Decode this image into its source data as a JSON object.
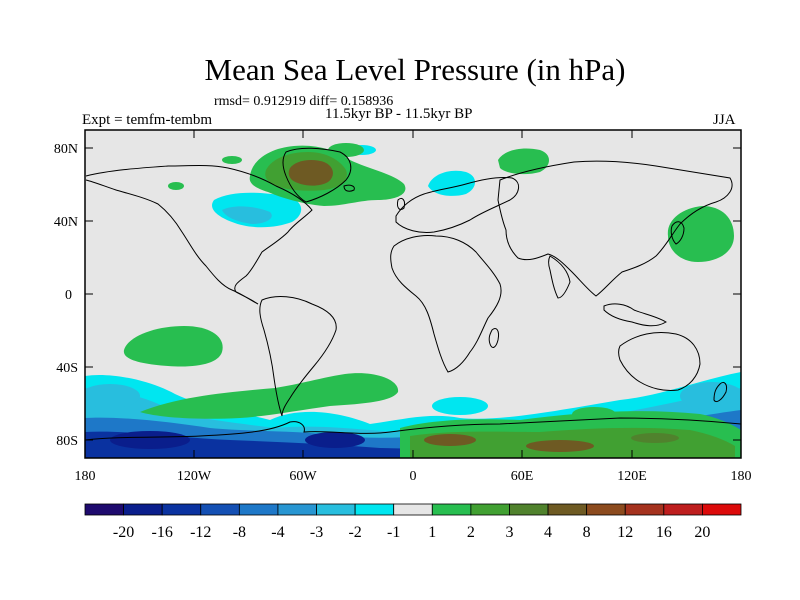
{
  "title": "Mean Sea Level Pressure (in hPa)",
  "stats": "rmsd= 0.912919 diff= 0.158936",
  "period": "11.5kyr BP - 11.5kyr BP",
  "experiment": "Expt = temfm-tembm",
  "season": "JJA",
  "axes": {
    "y_ticks": [
      "80N",
      "40N",
      "0",
      "40S",
      "80S"
    ],
    "x_ticks": [
      "180",
      "120W",
      "60W",
      "0",
      "60E",
      "120E",
      "180"
    ]
  },
  "colorbar": {
    "labels": [
      "-20",
      "-16",
      "-12",
      "-8",
      "-4",
      "-3",
      "-2",
      "-1",
      "1",
      "2",
      "3",
      "4",
      "8",
      "12",
      "16",
      "20"
    ],
    "colors": [
      "#1e0a6e",
      "#0a1e8c",
      "#0a32a0",
      "#1450b4",
      "#1e78c8",
      "#2896d2",
      "#28bede",
      "#00e6f0",
      "#e6e6e6",
      "#28be50",
      "#41a032",
      "#50822d",
      "#6e5a23",
      "#8c4b1e",
      "#a5321e",
      "#be1e1e",
      "#dc0a0a"
    ]
  },
  "map": {
    "background_color": "#e6e6e6",
    "land_outline_color": "#000000"
  }
}
